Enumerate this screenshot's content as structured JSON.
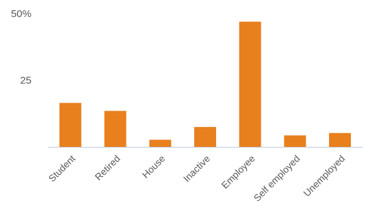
{
  "chart_data": {
    "type": "bar",
    "categories": [
      "Student",
      "Retired",
      "House",
      "Inactive",
      "Employee",
      "Self employed",
      "Unemployed"
    ],
    "values": [
      16.5,
      13.5,
      2.7,
      7.5,
      47.0,
      4.3,
      5.2
    ],
    "ylim": [
      0,
      50
    ],
    "yticks": [
      25,
      50
    ],
    "ytick_labels": [
      "25",
      "50%"
    ],
    "bar_color": "#E8801E",
    "axis_color": "#BFCBDC",
    "grid": false,
    "legend": "none",
    "x_label_rotation": -45
  }
}
